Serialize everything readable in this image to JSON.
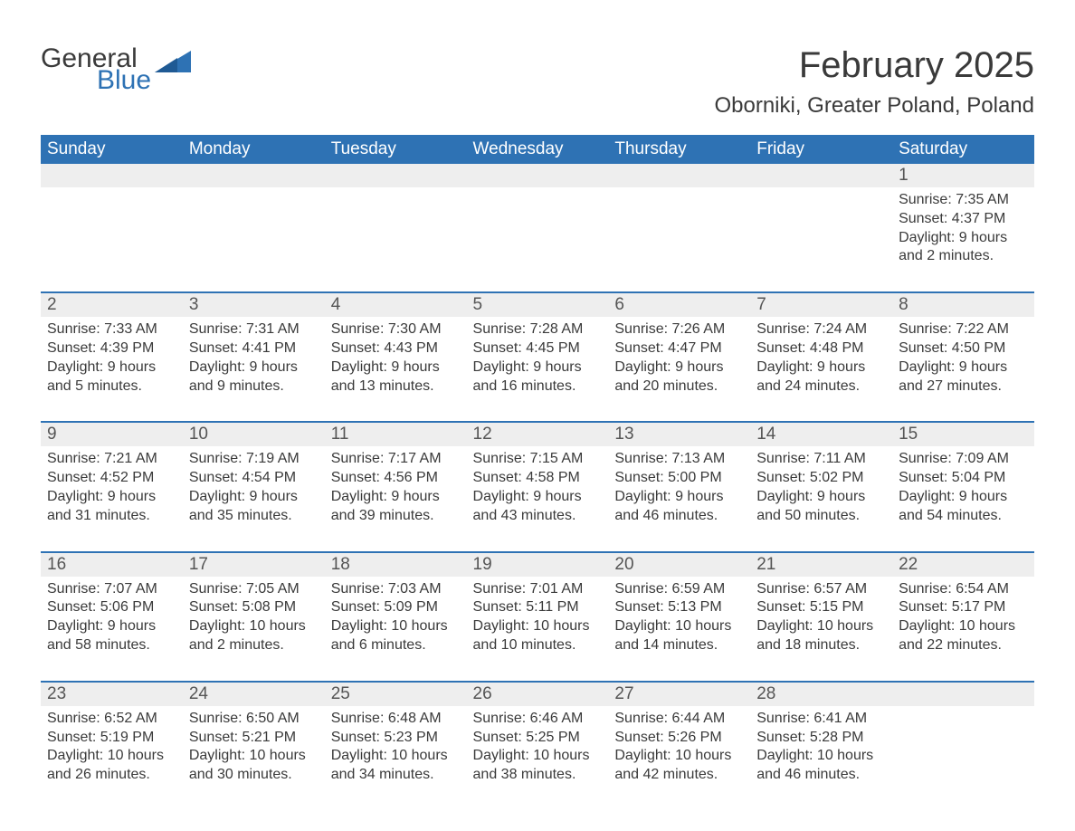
{
  "logo": {
    "word1": "General",
    "word2": "Blue"
  },
  "header": {
    "month_title": "February 2025",
    "location": "Oborniki, Greater Poland, Poland"
  },
  "colors": {
    "header_bg": "#2e72b4",
    "header_text": "#ffffff",
    "daynum_bg": "#eeeeee",
    "row_border": "#2e72b4",
    "body_text": "#3a3a3a",
    "page_bg": "#ffffff",
    "logo_accent": "#2e72b4"
  },
  "typography": {
    "month_title_fontsize": 40,
    "location_fontsize": 24,
    "header_fontsize": 19,
    "daynum_fontsize": 19,
    "cell_fontsize": 16,
    "font_family": "Arial"
  },
  "calendar": {
    "type": "table",
    "columns": [
      "Sunday",
      "Monday",
      "Tuesday",
      "Wednesday",
      "Thursday",
      "Friday",
      "Saturday"
    ],
    "weeks": [
      [
        null,
        null,
        null,
        null,
        null,
        null,
        {
          "day": "1",
          "sunrise": "Sunrise: 7:35 AM",
          "sunset": "Sunset: 4:37 PM",
          "daylight": "Daylight: 9 hours and 2 minutes."
        }
      ],
      [
        {
          "day": "2",
          "sunrise": "Sunrise: 7:33 AM",
          "sunset": "Sunset: 4:39 PM",
          "daylight": "Daylight: 9 hours and 5 minutes."
        },
        {
          "day": "3",
          "sunrise": "Sunrise: 7:31 AM",
          "sunset": "Sunset: 4:41 PM",
          "daylight": "Daylight: 9 hours and 9 minutes."
        },
        {
          "day": "4",
          "sunrise": "Sunrise: 7:30 AM",
          "sunset": "Sunset: 4:43 PM",
          "daylight": "Daylight: 9 hours and 13 minutes."
        },
        {
          "day": "5",
          "sunrise": "Sunrise: 7:28 AM",
          "sunset": "Sunset: 4:45 PM",
          "daylight": "Daylight: 9 hours and 16 minutes."
        },
        {
          "day": "6",
          "sunrise": "Sunrise: 7:26 AM",
          "sunset": "Sunset: 4:47 PM",
          "daylight": "Daylight: 9 hours and 20 minutes."
        },
        {
          "day": "7",
          "sunrise": "Sunrise: 7:24 AM",
          "sunset": "Sunset: 4:48 PM",
          "daylight": "Daylight: 9 hours and 24 minutes."
        },
        {
          "day": "8",
          "sunrise": "Sunrise: 7:22 AM",
          "sunset": "Sunset: 4:50 PM",
          "daylight": "Daylight: 9 hours and 27 minutes."
        }
      ],
      [
        {
          "day": "9",
          "sunrise": "Sunrise: 7:21 AM",
          "sunset": "Sunset: 4:52 PM",
          "daylight": "Daylight: 9 hours and 31 minutes."
        },
        {
          "day": "10",
          "sunrise": "Sunrise: 7:19 AM",
          "sunset": "Sunset: 4:54 PM",
          "daylight": "Daylight: 9 hours and 35 minutes."
        },
        {
          "day": "11",
          "sunrise": "Sunrise: 7:17 AM",
          "sunset": "Sunset: 4:56 PM",
          "daylight": "Daylight: 9 hours and 39 minutes."
        },
        {
          "day": "12",
          "sunrise": "Sunrise: 7:15 AM",
          "sunset": "Sunset: 4:58 PM",
          "daylight": "Daylight: 9 hours and 43 minutes."
        },
        {
          "day": "13",
          "sunrise": "Sunrise: 7:13 AM",
          "sunset": "Sunset: 5:00 PM",
          "daylight": "Daylight: 9 hours and 46 minutes."
        },
        {
          "day": "14",
          "sunrise": "Sunrise: 7:11 AM",
          "sunset": "Sunset: 5:02 PM",
          "daylight": "Daylight: 9 hours and 50 minutes."
        },
        {
          "day": "15",
          "sunrise": "Sunrise: 7:09 AM",
          "sunset": "Sunset: 5:04 PM",
          "daylight": "Daylight: 9 hours and 54 minutes."
        }
      ],
      [
        {
          "day": "16",
          "sunrise": "Sunrise: 7:07 AM",
          "sunset": "Sunset: 5:06 PM",
          "daylight": "Daylight: 9 hours and 58 minutes."
        },
        {
          "day": "17",
          "sunrise": "Sunrise: 7:05 AM",
          "sunset": "Sunset: 5:08 PM",
          "daylight": "Daylight: 10 hours and 2 minutes."
        },
        {
          "day": "18",
          "sunrise": "Sunrise: 7:03 AM",
          "sunset": "Sunset: 5:09 PM",
          "daylight": "Daylight: 10 hours and 6 minutes."
        },
        {
          "day": "19",
          "sunrise": "Sunrise: 7:01 AM",
          "sunset": "Sunset: 5:11 PM",
          "daylight": "Daylight: 10 hours and 10 minutes."
        },
        {
          "day": "20",
          "sunrise": "Sunrise: 6:59 AM",
          "sunset": "Sunset: 5:13 PM",
          "daylight": "Daylight: 10 hours and 14 minutes."
        },
        {
          "day": "21",
          "sunrise": "Sunrise: 6:57 AM",
          "sunset": "Sunset: 5:15 PM",
          "daylight": "Daylight: 10 hours and 18 minutes."
        },
        {
          "day": "22",
          "sunrise": "Sunrise: 6:54 AM",
          "sunset": "Sunset: 5:17 PM",
          "daylight": "Daylight: 10 hours and 22 minutes."
        }
      ],
      [
        {
          "day": "23",
          "sunrise": "Sunrise: 6:52 AM",
          "sunset": "Sunset: 5:19 PM",
          "daylight": "Daylight: 10 hours and 26 minutes."
        },
        {
          "day": "24",
          "sunrise": "Sunrise: 6:50 AM",
          "sunset": "Sunset: 5:21 PM",
          "daylight": "Daylight: 10 hours and 30 minutes."
        },
        {
          "day": "25",
          "sunrise": "Sunrise: 6:48 AM",
          "sunset": "Sunset: 5:23 PM",
          "daylight": "Daylight: 10 hours and 34 minutes."
        },
        {
          "day": "26",
          "sunrise": "Sunrise: 6:46 AM",
          "sunset": "Sunset: 5:25 PM",
          "daylight": "Daylight: 10 hours and 38 minutes."
        },
        {
          "day": "27",
          "sunrise": "Sunrise: 6:44 AM",
          "sunset": "Sunset: 5:26 PM",
          "daylight": "Daylight: 10 hours and 42 minutes."
        },
        {
          "day": "28",
          "sunrise": "Sunrise: 6:41 AM",
          "sunset": "Sunset: 5:28 PM",
          "daylight": "Daylight: 10 hours and 46 minutes."
        },
        null
      ]
    ]
  }
}
